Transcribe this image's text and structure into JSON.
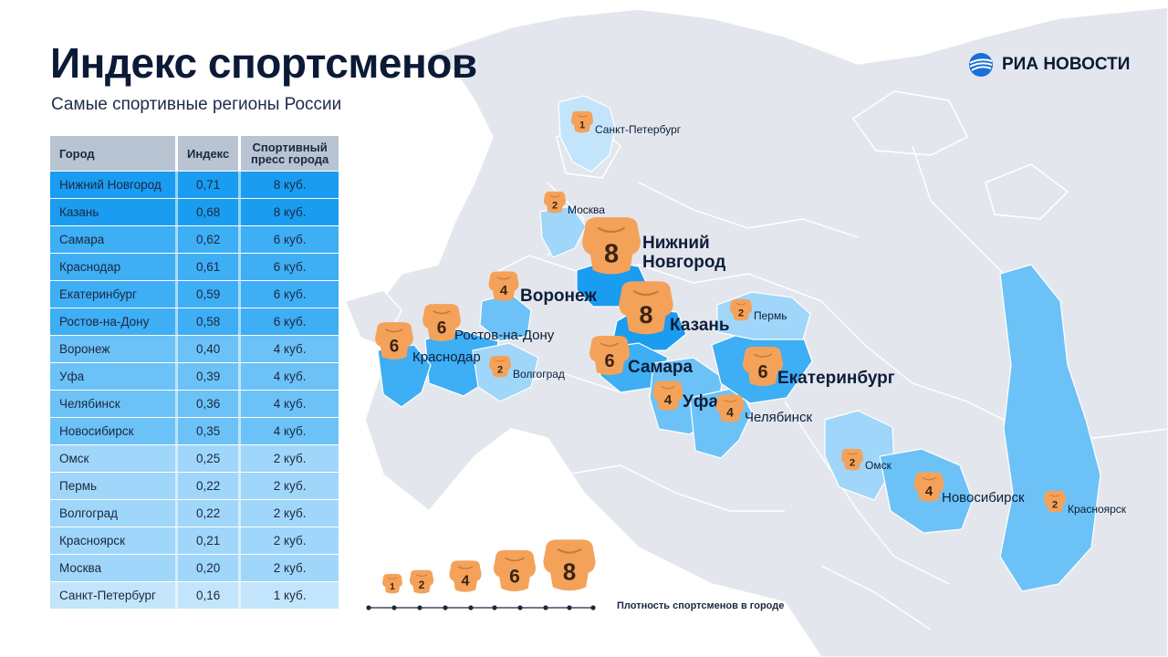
{
  "header": {
    "title": "Индекс спортсменов",
    "subtitle": "Самые спортивные регионы России"
  },
  "brand": {
    "name": "РИА НОВОСТИ",
    "icon": "ria-globe-icon"
  },
  "table": {
    "headers": {
      "city": "Город",
      "index": "Индекс",
      "press_line1": "Спортивный",
      "press_line2": "пресс города"
    },
    "rows": [
      {
        "city": "Нижний Новгород",
        "index": "0,71",
        "press": "8 куб.",
        "color": "#1a9cf0"
      },
      {
        "city": "Казань",
        "index": "0,68",
        "press": "8 куб.",
        "color": "#1a9cf0"
      },
      {
        "city": "Самара",
        "index": "0,62",
        "press": "6 куб.",
        "color": "#3eaef5"
      },
      {
        "city": "Краснодар",
        "index": "0,61",
        "press": "6 куб.",
        "color": "#3eaef5"
      },
      {
        "city": "Екатеринбург",
        "index": "0,59",
        "press": "6 куб.",
        "color": "#3eaef5"
      },
      {
        "city": "Ростов-на-Дону",
        "index": "0,58",
        "press": "6 куб.",
        "color": "#3eaef5"
      },
      {
        "city": "Воронеж",
        "index": "0,40",
        "press": "4 куб.",
        "color": "#6cc2f7"
      },
      {
        "city": "Уфа",
        "index": "0,39",
        "press": "4 куб.",
        "color": "#6cc2f7"
      },
      {
        "city": "Челябинск",
        "index": "0,36",
        "press": "4 куб.",
        "color": "#6cc2f7"
      },
      {
        "city": "Новосибирск",
        "index": "0,35",
        "press": "4 куб.",
        "color": "#6cc2f7"
      },
      {
        "city": "Омск",
        "index": "0,25",
        "press": "2 куб.",
        "color": "#9fd6f9"
      },
      {
        "city": "Пермь",
        "index": "0,22",
        "press": "2 куб.",
        "color": "#9fd6f9"
      },
      {
        "city": "Волгоград",
        "index": "0,22",
        "press": "2 куб.",
        "color": "#9fd6f9"
      },
      {
        "city": "Красноярск",
        "index": "0,21",
        "press": "2 куб.",
        "color": "#9fd6f9"
      },
      {
        "city": "Москва",
        "index": "0,20",
        "press": "2 куб.",
        "color": "#9fd6f9"
      },
      {
        "city": "Санкт-Петербург",
        "index": "0,16",
        "press": "1 куб.",
        "color": "#c3e5fb"
      }
    ]
  },
  "map": {
    "colors": {
      "land": "#e3e7ed",
      "border": "#ffffff",
      "tier8": "#1a9cf0",
      "tier6": "#3eaef5",
      "tier4": "#6cc2f7",
      "tier2": "#9fd6f9",
      "tier1": "#c3e5fb",
      "badge": "#f4a25a",
      "badge_text": "#3a2414"
    },
    "markers": [
      {
        "name": "nizhny-novgorod",
        "label_line1": "Нижний",
        "label_line2": "Новгород",
        "value": "8",
        "label_size": "large"
      },
      {
        "name": "kazan",
        "label_line1": "Казань",
        "label_line2": "",
        "value": "8",
        "label_size": "large"
      },
      {
        "name": "samara",
        "label_line1": "Самара",
        "label_line2": "",
        "value": "6",
        "label_size": "large"
      },
      {
        "name": "krasnodar",
        "label_line1": "Краснодар",
        "label_line2": "",
        "value": "6",
        "label_size": "medium"
      },
      {
        "name": "yekaterinburg",
        "label_line1": "Екатеринбург",
        "label_line2": "",
        "value": "6",
        "label_size": "large"
      },
      {
        "name": "rostov-on-don",
        "label_line1": "Ростов-на-Дону",
        "label_line2": "",
        "value": "6",
        "label_size": "medium"
      },
      {
        "name": "voronezh",
        "label_line1": "Воронеж",
        "label_line2": "",
        "value": "4",
        "label_size": "large"
      },
      {
        "name": "ufa",
        "label_line1": "Уфа",
        "label_line2": "",
        "value": "4",
        "label_size": "large"
      },
      {
        "name": "chelyabinsk",
        "label_line1": "Челябинск",
        "label_line2": "",
        "value": "4",
        "label_size": "medium"
      },
      {
        "name": "novosibirsk",
        "label_line1": "Новосибирск",
        "label_line2": "",
        "value": "4",
        "label_size": "medium"
      },
      {
        "name": "omsk",
        "label_line1": "Омск",
        "label_line2": "",
        "value": "2",
        "label_size": "small"
      },
      {
        "name": "perm",
        "label_line1": "Пермь",
        "label_line2": "",
        "value": "2",
        "label_size": "small"
      },
      {
        "name": "volgograd",
        "label_line1": "Волгоград",
        "label_line2": "",
        "value": "2",
        "label_size": "small"
      },
      {
        "name": "krasnoyarsk",
        "label_line1": "Красноярск",
        "label_line2": "",
        "value": "2",
        "label_size": "small"
      },
      {
        "name": "moscow",
        "label_line1": "Москва",
        "label_line2": "",
        "value": "2",
        "label_size": "small"
      },
      {
        "name": "saint-petersburg",
        "label_line1": "Санкт-Петербург",
        "label_line2": "",
        "value": "1",
        "label_size": "small"
      }
    ]
  },
  "legend": {
    "title": "Плотность спортсменов в городе",
    "steps": [
      "1",
      "2",
      "4",
      "6",
      "8"
    ]
  }
}
